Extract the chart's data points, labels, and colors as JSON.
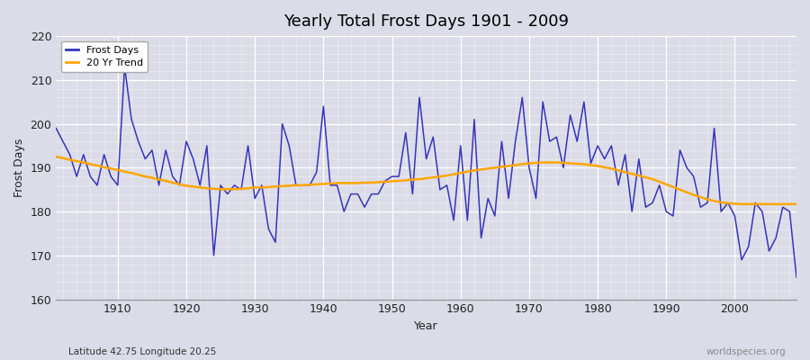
{
  "title": "Yearly Total Frost Days 1901 - 2009",
  "xlabel": "Year",
  "ylabel": "Frost Days",
  "footnote_left": "Latitude 42.75 Longitude 20.25",
  "footnote_right": "worldspecies.org",
  "ylim": [
    160,
    220
  ],
  "xlim": [
    1901,
    2009
  ],
  "yticks": [
    160,
    170,
    180,
    190,
    200,
    210,
    220
  ],
  "xticks": [
    1910,
    1920,
    1930,
    1940,
    1950,
    1960,
    1970,
    1980,
    1990,
    2000
  ],
  "bg_color": "#dcdce8",
  "plot_bg_color": "#dcdce8",
  "line_color": "#3535bb",
  "trend_color": "#ffa500",
  "legend_entries": [
    "Frost Days",
    "20 Yr Trend"
  ],
  "frost_days": [
    [
      1901,
      199
    ],
    [
      1902,
      196
    ],
    [
      1903,
      193
    ],
    [
      1904,
      188
    ],
    [
      1905,
      193
    ],
    [
      1906,
      188
    ],
    [
      1907,
      186
    ],
    [
      1908,
      193
    ],
    [
      1909,
      188
    ],
    [
      1910,
      186
    ],
    [
      1911,
      213
    ],
    [
      1912,
      201
    ],
    [
      1913,
      196
    ],
    [
      1914,
      192
    ],
    [
      1915,
      194
    ],
    [
      1916,
      186
    ],
    [
      1917,
      194
    ],
    [
      1918,
      188
    ],
    [
      1919,
      186
    ],
    [
      1920,
      196
    ],
    [
      1921,
      192
    ],
    [
      1922,
      186
    ],
    [
      1923,
      195
    ],
    [
      1924,
      170
    ],
    [
      1925,
      186
    ],
    [
      1926,
      184
    ],
    [
      1927,
      186
    ],
    [
      1928,
      185
    ],
    [
      1929,
      195
    ],
    [
      1930,
      183
    ],
    [
      1931,
      186
    ],
    [
      1932,
      176
    ],
    [
      1933,
      173
    ],
    [
      1934,
      200
    ],
    [
      1935,
      195
    ],
    [
      1936,
      186
    ],
    [
      1937,
      186
    ],
    [
      1938,
      186
    ],
    [
      1939,
      189
    ],
    [
      1940,
      204
    ],
    [
      1941,
      186
    ],
    [
      1942,
      186
    ],
    [
      1943,
      180
    ],
    [
      1944,
      184
    ],
    [
      1945,
      184
    ],
    [
      1946,
      181
    ],
    [
      1947,
      184
    ],
    [
      1948,
      184
    ],
    [
      1949,
      187
    ],
    [
      1950,
      188
    ],
    [
      1951,
      188
    ],
    [
      1952,
      198
    ],
    [
      1953,
      184
    ],
    [
      1954,
      206
    ],
    [
      1955,
      192
    ],
    [
      1956,
      197
    ],
    [
      1957,
      185
    ],
    [
      1958,
      186
    ],
    [
      1959,
      178
    ],
    [
      1960,
      195
    ],
    [
      1961,
      178
    ],
    [
      1962,
      201
    ],
    [
      1963,
      174
    ],
    [
      1964,
      183
    ],
    [
      1965,
      179
    ],
    [
      1966,
      196
    ],
    [
      1967,
      183
    ],
    [
      1968,
      196
    ],
    [
      1969,
      206
    ],
    [
      1970,
      190
    ],
    [
      1971,
      183
    ],
    [
      1972,
      205
    ],
    [
      1973,
      196
    ],
    [
      1974,
      197
    ],
    [
      1975,
      190
    ],
    [
      1976,
      202
    ],
    [
      1977,
      196
    ],
    [
      1978,
      205
    ],
    [
      1979,
      191
    ],
    [
      1980,
      195
    ],
    [
      1981,
      192
    ],
    [
      1982,
      195
    ],
    [
      1983,
      186
    ],
    [
      1984,
      193
    ],
    [
      1985,
      180
    ],
    [
      1986,
      192
    ],
    [
      1987,
      181
    ],
    [
      1988,
      182
    ],
    [
      1989,
      186
    ],
    [
      1990,
      180
    ],
    [
      1991,
      179
    ],
    [
      1992,
      194
    ],
    [
      1993,
      190
    ],
    [
      1994,
      188
    ],
    [
      1995,
      181
    ],
    [
      1996,
      182
    ],
    [
      1997,
      199
    ],
    [
      1998,
      180
    ],
    [
      1999,
      182
    ],
    [
      2000,
      179
    ],
    [
      2001,
      169
    ],
    [
      2002,
      172
    ],
    [
      2003,
      182
    ],
    [
      2004,
      180
    ],
    [
      2005,
      171
    ],
    [
      2006,
      174
    ],
    [
      2007,
      181
    ],
    [
      2008,
      180
    ],
    [
      2009,
      165
    ]
  ],
  "trend_20yr": [
    [
      1901,
      192.5
    ],
    [
      1902,
      192.2
    ],
    [
      1903,
      191.8
    ],
    [
      1904,
      191.5
    ],
    [
      1905,
      191.2
    ],
    [
      1906,
      190.8
    ],
    [
      1907,
      190.5
    ],
    [
      1908,
      190.1
    ],
    [
      1909,
      189.8
    ],
    [
      1910,
      189.5
    ],
    [
      1911,
      189.1
    ],
    [
      1912,
      188.8
    ],
    [
      1913,
      188.4
    ],
    [
      1914,
      188.0
    ],
    [
      1915,
      187.7
    ],
    [
      1916,
      187.3
    ],
    [
      1917,
      187.0
    ],
    [
      1918,
      186.6
    ],
    [
      1919,
      186.2
    ],
    [
      1920,
      185.9
    ],
    [
      1921,
      185.7
    ],
    [
      1922,
      185.5
    ],
    [
      1923,
      185.3
    ],
    [
      1924,
      185.2
    ],
    [
      1925,
      185.1
    ],
    [
      1926,
      185.1
    ],
    [
      1927,
      185.1
    ],
    [
      1928,
      185.2
    ],
    [
      1929,
      185.3
    ],
    [
      1930,
      185.5
    ],
    [
      1931,
      185.5
    ],
    [
      1932,
      185.6
    ],
    [
      1933,
      185.7
    ],
    [
      1934,
      185.8
    ],
    [
      1935,
      185.9
    ],
    [
      1936,
      186.0
    ],
    [
      1937,
      186.0
    ],
    [
      1938,
      186.1
    ],
    [
      1939,
      186.2
    ],
    [
      1940,
      186.3
    ],
    [
      1941,
      186.4
    ],
    [
      1942,
      186.5
    ],
    [
      1943,
      186.5
    ],
    [
      1944,
      186.5
    ],
    [
      1945,
      186.5
    ],
    [
      1946,
      186.6
    ],
    [
      1947,
      186.6
    ],
    [
      1948,
      186.7
    ],
    [
      1949,
      186.8
    ],
    [
      1950,
      186.9
    ],
    [
      1951,
      187.0
    ],
    [
      1952,
      187.1
    ],
    [
      1953,
      187.3
    ],
    [
      1954,
      187.4
    ],
    [
      1955,
      187.6
    ],
    [
      1956,
      187.8
    ],
    [
      1957,
      188.0
    ],
    [
      1958,
      188.2
    ],
    [
      1959,
      188.5
    ],
    [
      1960,
      188.8
    ],
    [
      1961,
      189.1
    ],
    [
      1962,
      189.4
    ],
    [
      1963,
      189.6
    ],
    [
      1964,
      189.8
    ],
    [
      1965,
      190.0
    ],
    [
      1966,
      190.2
    ],
    [
      1967,
      190.4
    ],
    [
      1968,
      190.6
    ],
    [
      1969,
      190.8
    ],
    [
      1970,
      191.0
    ],
    [
      1971,
      191.1
    ],
    [
      1972,
      191.2
    ],
    [
      1973,
      191.2
    ],
    [
      1974,
      191.2
    ],
    [
      1975,
      191.1
    ],
    [
      1976,
      191.0
    ],
    [
      1977,
      190.9
    ],
    [
      1978,
      190.8
    ],
    [
      1979,
      190.6
    ],
    [
      1980,
      190.4
    ],
    [
      1981,
      190.1
    ],
    [
      1982,
      189.8
    ],
    [
      1983,
      189.4
    ],
    [
      1984,
      189.0
    ],
    [
      1985,
      188.6
    ],
    [
      1986,
      188.2
    ],
    [
      1987,
      187.8
    ],
    [
      1988,
      187.4
    ],
    [
      1989,
      186.8
    ],
    [
      1990,
      186.2
    ],
    [
      1991,
      185.6
    ],
    [
      1992,
      185.0
    ],
    [
      1993,
      184.4
    ],
    [
      1994,
      183.8
    ],
    [
      1995,
      183.3
    ],
    [
      1996,
      182.8
    ],
    [
      1997,
      182.4
    ],
    [
      1998,
      182.1
    ],
    [
      1999,
      181.9
    ],
    [
      2000,
      181.8
    ],
    [
      2001,
      181.7
    ],
    [
      2002,
      181.7
    ],
    [
      2003,
      181.7
    ],
    [
      2004,
      181.7
    ],
    [
      2005,
      181.7
    ],
    [
      2006,
      181.7
    ],
    [
      2007,
      181.7
    ],
    [
      2008,
      181.7
    ],
    [
      2009,
      181.7
    ]
  ]
}
